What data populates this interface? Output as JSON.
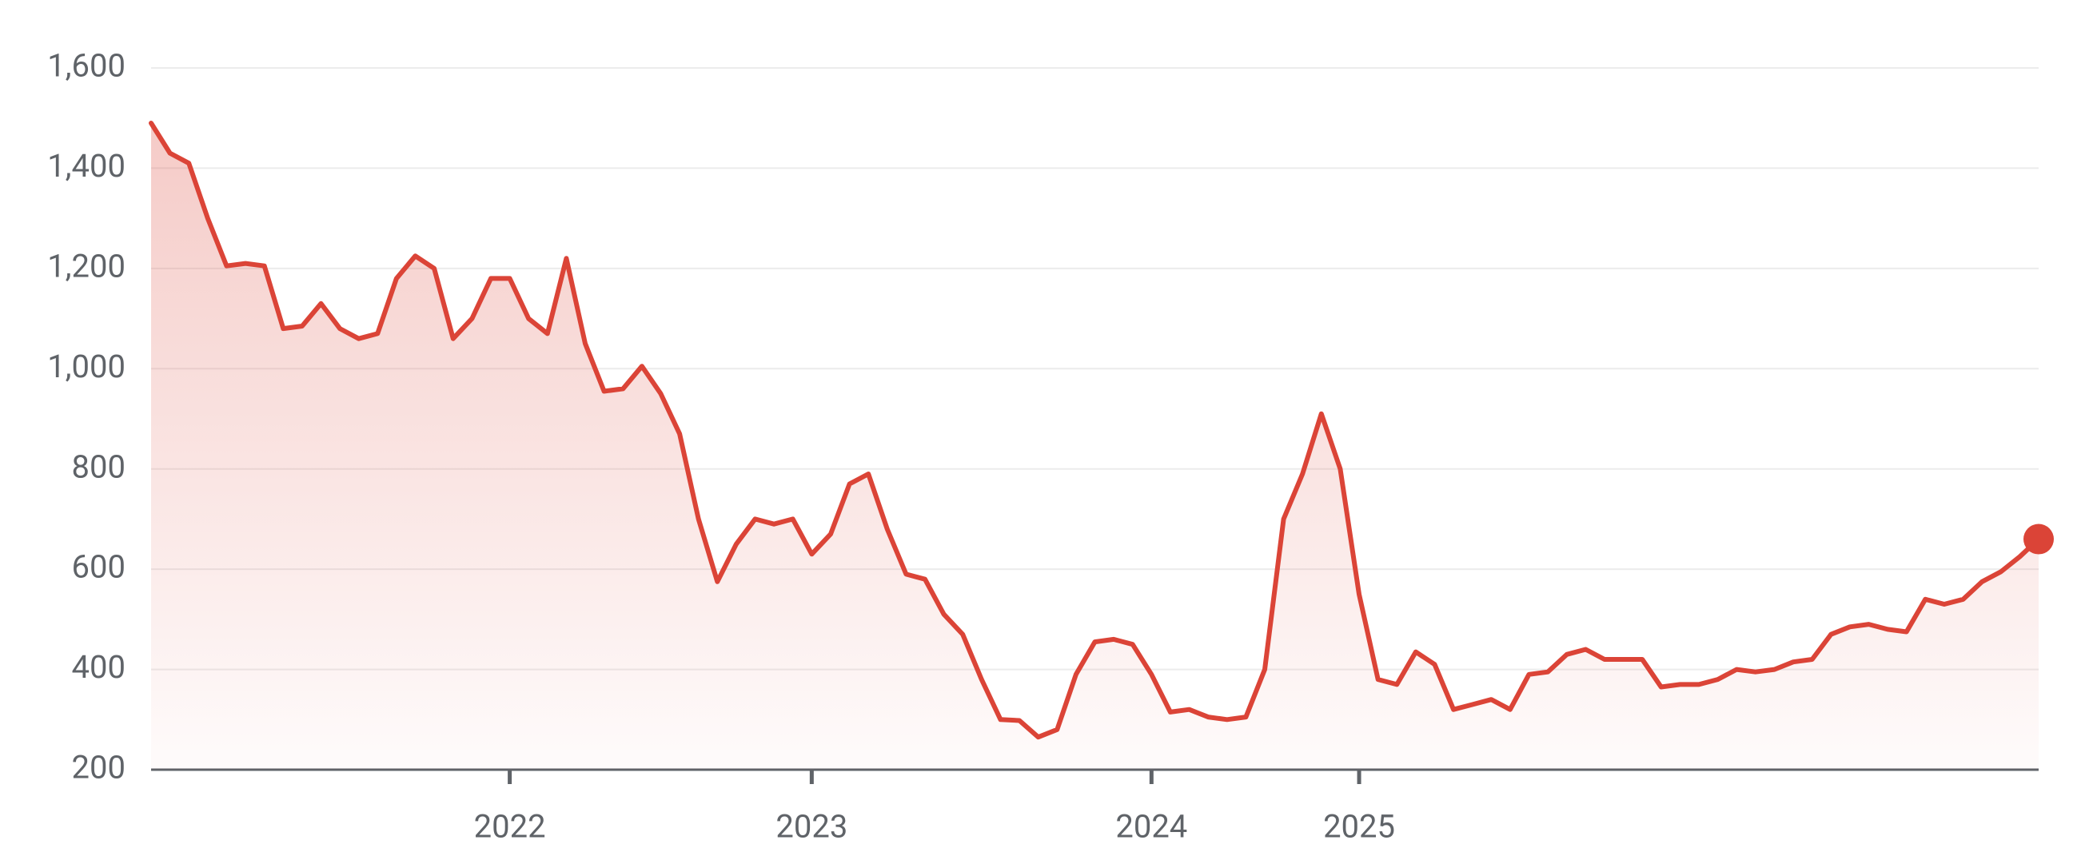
{
  "chart_data": {
    "type": "line",
    "categories": [
      null,
      null,
      null,
      null,
      null,
      null,
      null,
      null,
      null,
      null,
      null,
      null,
      null,
      null,
      null,
      null,
      null,
      null,
      null,
      "2022",
      null,
      null,
      null,
      null,
      null,
      null,
      null,
      null,
      null,
      null,
      null,
      null,
      null,
      null,
      null,
      "2023",
      null,
      null,
      null,
      null,
      null,
      null,
      null,
      null,
      null,
      null,
      null,
      null,
      null,
      null,
      null,
      null,
      null,
      "2024",
      null,
      null,
      null,
      null,
      null,
      null,
      null,
      null,
      null,
      null,
      "2025",
      null,
      null,
      null,
      null,
      null,
      null,
      null,
      null,
      null,
      null,
      null,
      null,
      null,
      null,
      null,
      null,
      null,
      null,
      null,
      null,
      null,
      null,
      null,
      null,
      null,
      null,
      null,
      null,
      null,
      null,
      null,
      null,
      null,
      null,
      null,
      null
    ],
    "series": [
      {
        "color": "#db4437",
        "values": [
          1490,
          1430,
          1410,
          1300,
          1205,
          1210,
          1205,
          1080,
          1085,
          1130,
          1080,
          1060,
          1070,
          1180,
          1225,
          1200,
          1060,
          1100,
          1180,
          1180,
          1100,
          1070,
          1220,
          1050,
          955,
          960,
          1005,
          950,
          870,
          700,
          575,
          650,
          700,
          690,
          700,
          630,
          670,
          770,
          790,
          680,
          590,
          580,
          510,
          470,
          380,
          300,
          298,
          265,
          280,
          390,
          455,
          460,
          450,
          390,
          315,
          320,
          305,
          300,
          305,
          400,
          700,
          790,
          910,
          800,
          550,
          380,
          370,
          435,
          410,
          320,
          330,
          340,
          320,
          390,
          395,
          430,
          440,
          420,
          420,
          420,
          365,
          370,
          370,
          380,
          400,
          395,
          400,
          415,
          420,
          470,
          485,
          490,
          480,
          475,
          540,
          530,
          540,
          575,
          595,
          625,
          660
        ]
      }
    ],
    "ylim": [
      200,
      1600
    ],
    "yticks": [
      200,
      400,
      600,
      800,
      {
        "value": 1000,
        "label": "1,000"
      },
      {
        "value": 1200,
        "label": "1,200"
      },
      {
        "value": 1400,
        "label": "1,400"
      },
      {
        "value": 1600,
        "label": "1,600"
      }
    ],
    "grid": true
  }
}
